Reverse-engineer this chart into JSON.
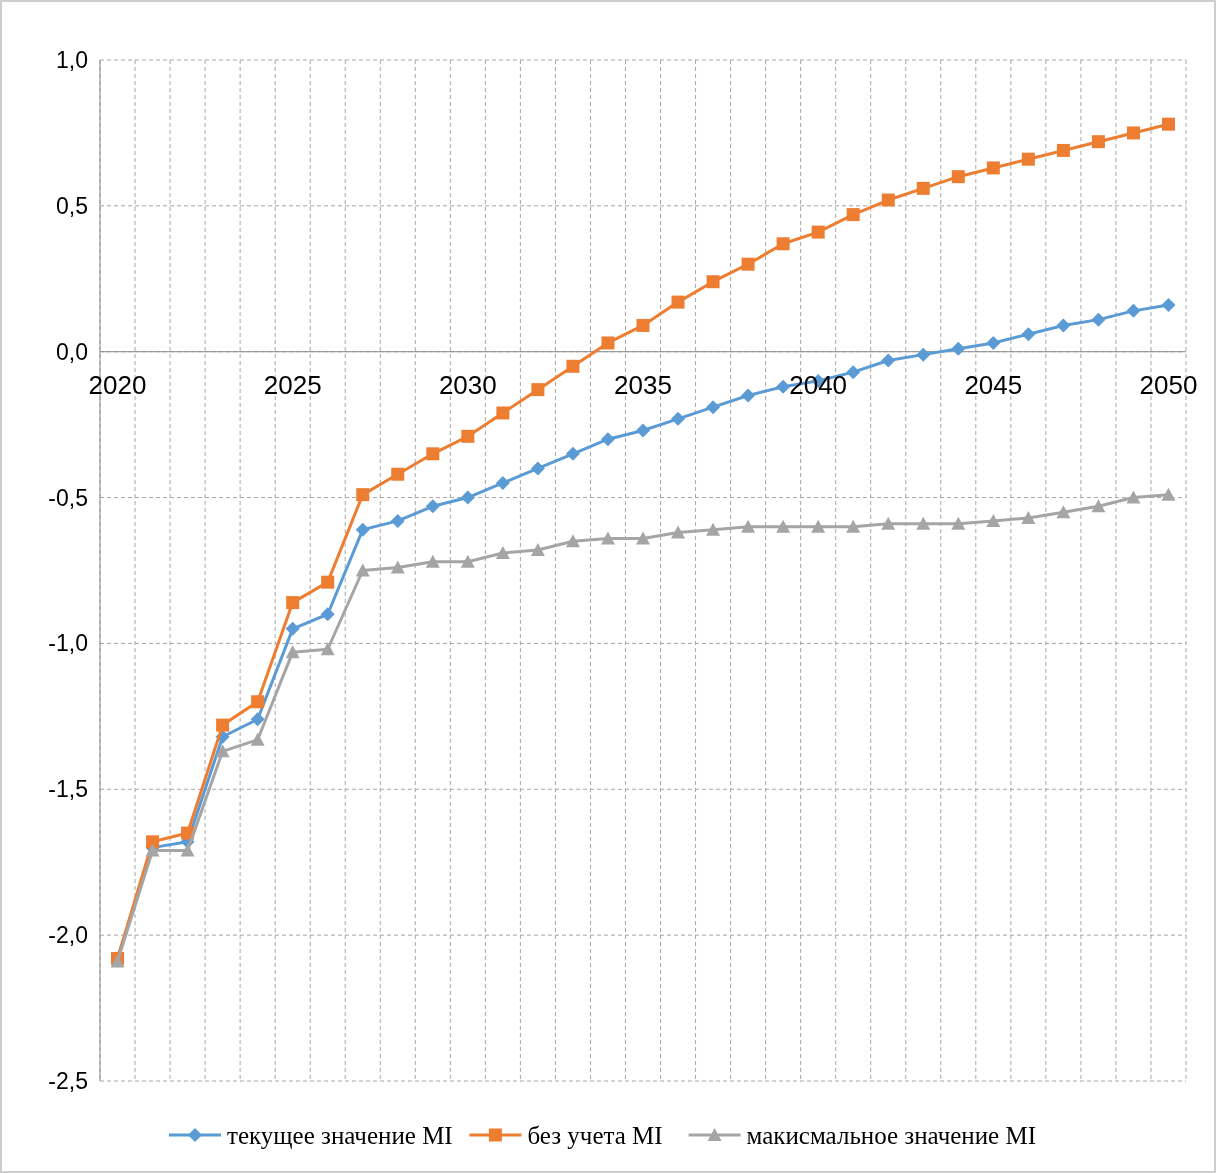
{
  "chart_data": {
    "type": "line",
    "categories": [
      "2020",
      null,
      null,
      null,
      null,
      "2025",
      null,
      null,
      null,
      null,
      "2030",
      null,
      null,
      null,
      null,
      "2035",
      null,
      null,
      null,
      null,
      "2040",
      null,
      null,
      null,
      null,
      "2045",
      null,
      null,
      null,
      null,
      "2050"
    ],
    "ylim": [
      -2.5,
      1.0
    ],
    "yticks": [
      {
        "value": -2.5,
        "label": "-2,5"
      },
      {
        "value": -2,
        "label": "-2,0"
      },
      {
        "value": -1.5,
        "label": "-1,5"
      },
      {
        "value": -1,
        "label": "-1,0"
      },
      {
        "value": -0.5,
        "label": "-0,5"
      },
      {
        "value": 0,
        "label": "0,0"
      },
      {
        "value": 0.5,
        "label": "0,5"
      },
      {
        "value": 1,
        "label": "1,0"
      }
    ],
    "grid": true,
    "legend": "bottom",
    "line_style": "solid",
    "series": [
      {
        "name": "текущее значение MI",
        "color": "#5b9bd5",
        "marker": "diamond",
        "values": [
          -2.08,
          -1.7,
          -1.68,
          -1.32,
          -1.26,
          -0.95,
          -0.9,
          -0.61,
          -0.58,
          -0.53,
          -0.5,
          -0.45,
          -0.4,
          -0.35,
          -0.3,
          -0.27,
          -0.23,
          -0.19,
          -0.15,
          -0.12,
          -0.1,
          -0.07,
          -0.03,
          -0.01,
          0.01,
          0.03,
          0.06,
          0.09,
          0.11,
          0.14,
          0.16
        ]
      },
      {
        "name": "без учета MI",
        "color": "#ed7d31",
        "marker": "square",
        "values": [
          -2.08,
          -1.68,
          -1.65,
          -1.28,
          -1.2,
          -0.86,
          -0.79,
          -0.49,
          -0.42,
          -0.35,
          -0.29,
          -0.21,
          -0.13,
          -0.05,
          0.03,
          0.09,
          0.17,
          0.24,
          0.3,
          0.37,
          0.41,
          0.47,
          0.52,
          0.56,
          0.6,
          0.63,
          0.66,
          0.69,
          0.72,
          0.75,
          0.78
        ]
      },
      {
        "name": "макисмальное значение MI",
        "color": "#a5a5a5",
        "marker": "triangle",
        "values": [
          -2.09,
          -1.71,
          -1.71,
          -1.37,
          -1.33,
          -1.03,
          -1.02,
          -0.75,
          -0.74,
          -0.72,
          -0.72,
          -0.69,
          -0.68,
          -0.65,
          -0.64,
          -0.64,
          -0.62,
          -0.61,
          -0.6,
          -0.6,
          -0.6,
          -0.6,
          -0.59,
          -0.59,
          -0.59,
          -0.58,
          -0.57,
          -0.55,
          -0.53,
          -0.5,
          -0.49
        ]
      }
    ]
  }
}
